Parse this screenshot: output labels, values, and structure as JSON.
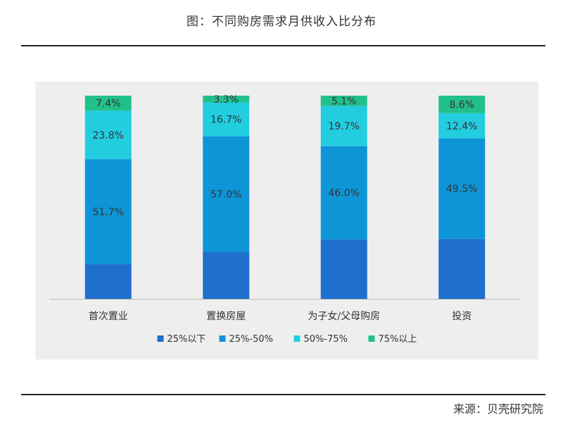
{
  "header": {
    "title": "图：不同购房需求月供收入比分布"
  },
  "footer": {
    "source": "来源：贝壳研究院"
  },
  "chart_data": {
    "type": "bar",
    "stacked": true,
    "categories": [
      "首次置业",
      "置换房屋",
      "为子女/父母购房",
      "投资"
    ],
    "series": [
      {
        "name": "25%以下",
        "color": "#1f6fcc",
        "values": [
          17.1,
          23.0,
          29.2,
          29.5
        ],
        "labels": [
          "",
          "",
          "",
          ""
        ]
      },
      {
        "name": "25%-50%",
        "color": "#0e95d8",
        "values": [
          51.7,
          57.0,
          46.0,
          49.5
        ],
        "labels": [
          "51.7%",
          "57.0%",
          "46.0%",
          "49.5%"
        ]
      },
      {
        "name": "50%-75%",
        "color": "#23cde0",
        "values": [
          23.8,
          16.7,
          19.7,
          12.4
        ],
        "labels": [
          "23.8%",
          "16.7%",
          "19.7%",
          "12.4%"
        ]
      },
      {
        "name": "75%以上",
        "color": "#22c08a",
        "values": [
          7.4,
          3.3,
          5.1,
          8.6
        ],
        "labels": [
          "7.4%",
          "3.3%",
          "5.1%",
          "8.6%"
        ]
      }
    ],
    "ylim": [
      0,
      100
    ],
    "grid": false,
    "legend_position": "bottom"
  }
}
